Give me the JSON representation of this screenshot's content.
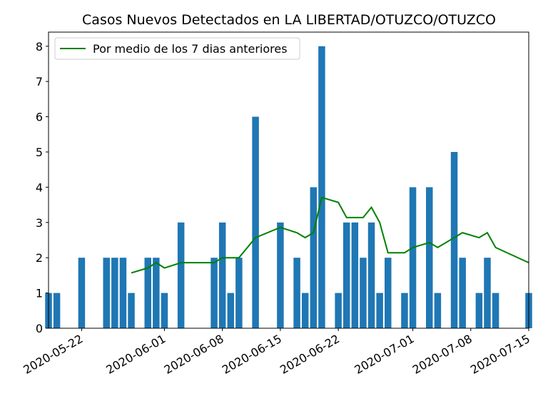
{
  "chart_data": {
    "type": "bar",
    "title": "Casos Nuevos Detectados en LA LIBERTAD/OTUZCO/OTUZCO",
    "xlabel": "",
    "ylabel": "",
    "x_range": [
      "2020-05-18",
      "2020-07-15"
    ],
    "ylim": [
      0,
      8.4
    ],
    "y_ticks": [
      "0",
      "1",
      "2",
      "3",
      "4",
      "5",
      "6",
      "7",
      "8"
    ],
    "x_ticks": [
      "2020-05-22",
      "2020-06-01",
      "2020-06-08",
      "2020-06-15",
      "2020-06-22",
      "2020-07-01",
      "2020-07-08",
      "2020-07-15"
    ],
    "grid": false,
    "legend_position": "top-left",
    "bar_color": "#1f77b4",
    "line_color": "#008000",
    "bars": [
      {
        "date": "2020-05-18",
        "value": 1
      },
      {
        "date": "2020-05-19",
        "value": 1
      },
      {
        "date": "2020-05-22",
        "value": 2
      },
      {
        "date": "2020-05-25",
        "value": 2
      },
      {
        "date": "2020-05-26",
        "value": 2
      },
      {
        "date": "2020-05-27",
        "value": 2
      },
      {
        "date": "2020-05-28",
        "value": 1
      },
      {
        "date": "2020-05-30",
        "value": 2
      },
      {
        "date": "2020-05-31",
        "value": 2
      },
      {
        "date": "2020-06-01",
        "value": 1
      },
      {
        "date": "2020-06-03",
        "value": 3
      },
      {
        "date": "2020-06-07",
        "value": 2
      },
      {
        "date": "2020-06-08",
        "value": 3
      },
      {
        "date": "2020-06-09",
        "value": 1
      },
      {
        "date": "2020-06-10",
        "value": 2
      },
      {
        "date": "2020-06-12",
        "value": 6
      },
      {
        "date": "2020-06-15",
        "value": 3
      },
      {
        "date": "2020-06-17",
        "value": 2
      },
      {
        "date": "2020-06-18",
        "value": 1
      },
      {
        "date": "2020-06-19",
        "value": 4
      },
      {
        "date": "2020-06-20",
        "value": 8
      },
      {
        "date": "2020-06-22",
        "value": 1
      },
      {
        "date": "2020-06-23",
        "value": 3
      },
      {
        "date": "2020-06-24",
        "value": 3
      },
      {
        "date": "2020-06-25",
        "value": 2
      },
      {
        "date": "2020-06-26",
        "value": 3
      },
      {
        "date": "2020-06-27",
        "value": 1
      },
      {
        "date": "2020-06-28",
        "value": 2
      },
      {
        "date": "2020-06-30",
        "value": 1
      },
      {
        "date": "2020-07-01",
        "value": 4
      },
      {
        "date": "2020-07-03",
        "value": 4
      },
      {
        "date": "2020-07-04",
        "value": 1
      },
      {
        "date": "2020-07-06",
        "value": 5
      },
      {
        "date": "2020-07-07",
        "value": 2
      },
      {
        "date": "2020-07-09",
        "value": 1
      },
      {
        "date": "2020-07-10",
        "value": 2
      },
      {
        "date": "2020-07-11",
        "value": 1
      },
      {
        "date": "2020-07-15",
        "value": 1
      }
    ],
    "series": [
      {
        "name": "Por medio de los 7 dias anteriores",
        "type": "line",
        "points": [
          {
            "date": "2020-05-28",
            "value": 1.57
          },
          {
            "date": "2020-05-30",
            "value": 1.71
          },
          {
            "date": "2020-05-31",
            "value": 1.86
          },
          {
            "date": "2020-06-01",
            "value": 1.71
          },
          {
            "date": "2020-06-03",
            "value": 1.86
          },
          {
            "date": "2020-06-07",
            "value": 1.86
          },
          {
            "date": "2020-06-08",
            "value": 2.0
          },
          {
            "date": "2020-06-09",
            "value": 2.0
          },
          {
            "date": "2020-06-10",
            "value": 2.0
          },
          {
            "date": "2020-06-12",
            "value": 2.57
          },
          {
            "date": "2020-06-15",
            "value": 2.86
          },
          {
            "date": "2020-06-17",
            "value": 2.71
          },
          {
            "date": "2020-06-18",
            "value": 2.57
          },
          {
            "date": "2020-06-19",
            "value": 2.71
          },
          {
            "date": "2020-06-20",
            "value": 3.71
          },
          {
            "date": "2020-06-22",
            "value": 3.57
          },
          {
            "date": "2020-06-23",
            "value": 3.14
          },
          {
            "date": "2020-06-24",
            "value": 3.14
          },
          {
            "date": "2020-06-25",
            "value": 3.14
          },
          {
            "date": "2020-06-26",
            "value": 3.43
          },
          {
            "date": "2020-06-27",
            "value": 3.0
          },
          {
            "date": "2020-06-28",
            "value": 2.14
          },
          {
            "date": "2020-06-30",
            "value": 2.14
          },
          {
            "date": "2020-07-01",
            "value": 2.29
          },
          {
            "date": "2020-07-03",
            "value": 2.43
          },
          {
            "date": "2020-07-04",
            "value": 2.29
          },
          {
            "date": "2020-07-06",
            "value": 2.57
          },
          {
            "date": "2020-07-07",
            "value": 2.71
          },
          {
            "date": "2020-07-09",
            "value": 2.57
          },
          {
            "date": "2020-07-10",
            "value": 2.71
          },
          {
            "date": "2020-07-11",
            "value": 2.29
          },
          {
            "date": "2020-07-15",
            "value": 1.86
          }
        ]
      }
    ]
  }
}
